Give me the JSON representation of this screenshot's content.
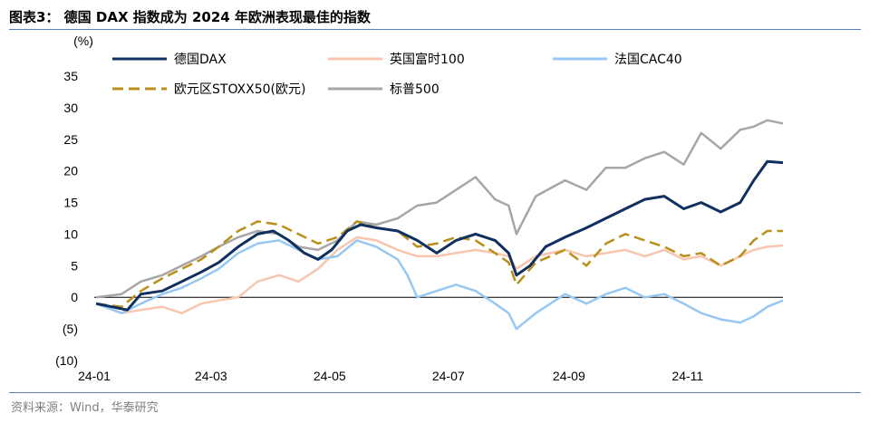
{
  "title": "图表3：  德国 DAX 指数成为 2024 年欧洲表现最佳的指数",
  "source": "资料来源：Wind，华泰研究",
  "chart_data": {
    "type": "line",
    "unit_label": "(%)",
    "y_ticks": [
      "35",
      "30",
      "25",
      "20",
      "15",
      "10",
      "5",
      "0",
      "(5)",
      "(10)"
    ],
    "y_tick_values": [
      35,
      30,
      25,
      20,
      15,
      10,
      5,
      0,
      -5,
      -10
    ],
    "ylim": [
      -10,
      35
    ],
    "x_ticks": [
      "24-01",
      "24-03",
      "24-05",
      "24-07",
      "24-09",
      "24-11"
    ],
    "x_tick_values": [
      "2024-01-01",
      "2024-03-01",
      "2024-05-01",
      "2024-07-01",
      "2024-09-01",
      "2024-11-01"
    ],
    "xlim": [
      "2024-01-01",
      "2024-12-20"
    ],
    "legend_position": "top",
    "series": [
      {
        "name": "德国DAX",
        "color": "#10305f",
        "dash": "solid",
        "points": [
          [
            "2024-01-02",
            -1.0
          ],
          [
            "2024-01-10",
            -1.5
          ],
          [
            "2024-01-18",
            -2.0
          ],
          [
            "2024-01-25",
            0.5
          ],
          [
            "2024-02-05",
            1.0
          ],
          [
            "2024-02-15",
            2.5
          ],
          [
            "2024-02-25",
            4.0
          ],
          [
            "2024-03-05",
            5.5
          ],
          [
            "2024-03-15",
            8.0
          ],
          [
            "2024-03-25",
            10.0
          ],
          [
            "2024-04-02",
            10.5
          ],
          [
            "2024-04-10",
            9.0
          ],
          [
            "2024-04-18",
            7.0
          ],
          [
            "2024-04-25",
            6.0
          ],
          [
            "2024-05-02",
            7.5
          ],
          [
            "2024-05-10",
            10.5
          ],
          [
            "2024-05-17",
            11.5
          ],
          [
            "2024-05-25",
            11.0
          ],
          [
            "2024-06-05",
            10.5
          ],
          [
            "2024-06-15",
            9.0
          ],
          [
            "2024-06-25",
            7.0
          ],
          [
            "2024-07-05",
            9.0
          ],
          [
            "2024-07-15",
            10.0
          ],
          [
            "2024-07-25",
            9.0
          ],
          [
            "2024-08-01",
            7.0
          ],
          [
            "2024-08-05",
            3.5
          ],
          [
            "2024-08-12",
            5.0
          ],
          [
            "2024-08-20",
            8.0
          ],
          [
            "2024-08-30",
            9.5
          ],
          [
            "2024-09-10",
            11.0
          ],
          [
            "2024-09-20",
            12.5
          ],
          [
            "2024-09-30",
            14.0
          ],
          [
            "2024-10-10",
            15.5
          ],
          [
            "2024-10-20",
            16.0
          ],
          [
            "2024-10-30",
            14.0
          ],
          [
            "2024-11-08",
            15.0
          ],
          [
            "2024-11-18",
            13.5
          ],
          [
            "2024-11-28",
            15.0
          ],
          [
            "2024-12-05",
            18.5
          ],
          [
            "2024-12-12",
            21.5
          ],
          [
            "2024-12-20",
            21.3
          ]
        ]
      },
      {
        "name": "英国富时100",
        "color": "#f8c6ae",
        "dash": "solid",
        "points": [
          [
            "2024-01-02",
            -1.0
          ],
          [
            "2024-01-15",
            -2.5
          ],
          [
            "2024-01-25",
            -2.0
          ],
          [
            "2024-02-05",
            -1.5
          ],
          [
            "2024-02-15",
            -2.5
          ],
          [
            "2024-02-25",
            -1.0
          ],
          [
            "2024-03-05",
            -0.5
          ],
          [
            "2024-03-15",
            0.0
          ],
          [
            "2024-03-25",
            2.5
          ],
          [
            "2024-04-05",
            3.5
          ],
          [
            "2024-04-15",
            2.5
          ],
          [
            "2024-04-25",
            4.5
          ],
          [
            "2024-05-05",
            7.5
          ],
          [
            "2024-05-15",
            9.5
          ],
          [
            "2024-05-25",
            9.0
          ],
          [
            "2024-06-05",
            7.5
          ],
          [
            "2024-06-15",
            6.5
          ],
          [
            "2024-06-25",
            6.5
          ],
          [
            "2024-07-05",
            7.0
          ],
          [
            "2024-07-15",
            7.5
          ],
          [
            "2024-07-25",
            7.0
          ],
          [
            "2024-08-01",
            6.5
          ],
          [
            "2024-08-05",
            4.5
          ],
          [
            "2024-08-15",
            6.5
          ],
          [
            "2024-08-30",
            7.5
          ],
          [
            "2024-09-10",
            6.5
          ],
          [
            "2024-09-20",
            7.0
          ],
          [
            "2024-09-30",
            7.5
          ],
          [
            "2024-10-10",
            6.5
          ],
          [
            "2024-10-20",
            7.5
          ],
          [
            "2024-10-30",
            6.0
          ],
          [
            "2024-11-08",
            6.5
          ],
          [
            "2024-11-18",
            5.0
          ],
          [
            "2024-11-28",
            6.5
          ],
          [
            "2024-12-05",
            7.5
          ],
          [
            "2024-12-12",
            8.0
          ],
          [
            "2024-12-20",
            8.2
          ]
        ]
      },
      {
        "name": "法国CAC40",
        "color": "#96c8f2",
        "dash": "solid",
        "points": [
          [
            "2024-01-02",
            -1.0
          ],
          [
            "2024-01-15",
            -2.5
          ],
          [
            "2024-01-25",
            -1.0
          ],
          [
            "2024-02-05",
            0.5
          ],
          [
            "2024-02-15",
            1.5
          ],
          [
            "2024-02-25",
            3.0
          ],
          [
            "2024-03-05",
            4.5
          ],
          [
            "2024-03-15",
            7.0
          ],
          [
            "2024-03-25",
            8.5
          ],
          [
            "2024-04-05",
            9.0
          ],
          [
            "2024-04-15",
            7.5
          ],
          [
            "2024-04-25",
            6.0
          ],
          [
            "2024-05-05",
            6.5
          ],
          [
            "2024-05-15",
            9.0
          ],
          [
            "2024-05-25",
            8.0
          ],
          [
            "2024-06-05",
            6.0
          ],
          [
            "2024-06-10",
            3.5
          ],
          [
            "2024-06-15",
            0.0
          ],
          [
            "2024-06-25",
            1.0
          ],
          [
            "2024-07-05",
            2.0
          ],
          [
            "2024-07-15",
            1.0
          ],
          [
            "2024-07-25",
            -1.0
          ],
          [
            "2024-08-01",
            -2.5
          ],
          [
            "2024-08-05",
            -5.0
          ],
          [
            "2024-08-15",
            -2.5
          ],
          [
            "2024-08-30",
            0.5
          ],
          [
            "2024-09-10",
            -1.0
          ],
          [
            "2024-09-20",
            0.5
          ],
          [
            "2024-09-30",
            1.5
          ],
          [
            "2024-10-10",
            0.0
          ],
          [
            "2024-10-20",
            0.5
          ],
          [
            "2024-10-30",
            -1.0
          ],
          [
            "2024-11-08",
            -2.5
          ],
          [
            "2024-11-18",
            -3.5
          ],
          [
            "2024-11-28",
            -4.0
          ],
          [
            "2024-12-05",
            -3.0
          ],
          [
            "2024-12-12",
            -1.5
          ],
          [
            "2024-12-20",
            -0.5
          ]
        ]
      },
      {
        "name": "欧元区STOXX50(欧元)",
        "color": "#b8901a",
        "dash": "dashed",
        "points": [
          [
            "2024-01-02",
            -1.0
          ],
          [
            "2024-01-15",
            -1.5
          ],
          [
            "2024-01-25",
            1.0
          ],
          [
            "2024-02-05",
            3.0
          ],
          [
            "2024-02-15",
            4.5
          ],
          [
            "2024-02-25",
            6.0
          ],
          [
            "2024-03-05",
            8.0
          ],
          [
            "2024-03-15",
            10.5
          ],
          [
            "2024-03-25",
            12.0
          ],
          [
            "2024-04-05",
            11.5
          ],
          [
            "2024-04-15",
            10.0
          ],
          [
            "2024-04-25",
            8.5
          ],
          [
            "2024-05-05",
            9.5
          ],
          [
            "2024-05-15",
            12.0
          ],
          [
            "2024-05-25",
            11.0
          ],
          [
            "2024-06-05",
            10.5
          ],
          [
            "2024-06-15",
            8.0
          ],
          [
            "2024-06-25",
            8.5
          ],
          [
            "2024-07-05",
            9.5
          ],
          [
            "2024-07-15",
            9.0
          ],
          [
            "2024-07-25",
            7.0
          ],
          [
            "2024-08-01",
            5.5
          ],
          [
            "2024-08-05",
            2.0
          ],
          [
            "2024-08-15",
            5.5
          ],
          [
            "2024-08-30",
            7.5
          ],
          [
            "2024-09-10",
            5.0
          ],
          [
            "2024-09-20",
            8.5
          ],
          [
            "2024-09-30",
            10.0
          ],
          [
            "2024-10-10",
            9.0
          ],
          [
            "2024-10-20",
            8.0
          ],
          [
            "2024-10-30",
            6.5
          ],
          [
            "2024-11-08",
            7.0
          ],
          [
            "2024-11-18",
            5.0
          ],
          [
            "2024-11-28",
            6.5
          ],
          [
            "2024-12-05",
            9.0
          ],
          [
            "2024-12-12",
            10.5
          ],
          [
            "2024-12-20",
            10.5
          ]
        ]
      },
      {
        "name": "标普500",
        "color": "#a6a6a6",
        "dash": "solid",
        "points": [
          [
            "2024-01-02",
            0.0
          ],
          [
            "2024-01-15",
            0.5
          ],
          [
            "2024-01-25",
            2.5
          ],
          [
            "2024-02-05",
            3.5
          ],
          [
            "2024-02-15",
            5.0
          ],
          [
            "2024-02-25",
            6.5
          ],
          [
            "2024-03-05",
            8.0
          ],
          [
            "2024-03-15",
            9.5
          ],
          [
            "2024-03-25",
            10.5
          ],
          [
            "2024-04-05",
            10.0
          ],
          [
            "2024-04-15",
            8.0
          ],
          [
            "2024-04-25",
            7.5
          ],
          [
            "2024-05-05",
            9.0
          ],
          [
            "2024-05-15",
            12.0
          ],
          [
            "2024-05-25",
            11.5
          ],
          [
            "2024-06-05",
            12.5
          ],
          [
            "2024-06-15",
            14.5
          ],
          [
            "2024-06-25",
            15.0
          ],
          [
            "2024-07-05",
            17.0
          ],
          [
            "2024-07-15",
            19.0
          ],
          [
            "2024-07-25",
            15.5
          ],
          [
            "2024-08-01",
            14.5
          ],
          [
            "2024-08-05",
            10.0
          ],
          [
            "2024-08-15",
            16.0
          ],
          [
            "2024-08-30",
            18.5
          ],
          [
            "2024-09-10",
            17.0
          ],
          [
            "2024-09-20",
            20.5
          ],
          [
            "2024-09-30",
            20.5
          ],
          [
            "2024-10-10",
            22.0
          ],
          [
            "2024-10-20",
            23.0
          ],
          [
            "2024-10-30",
            21.0
          ],
          [
            "2024-11-08",
            26.0
          ],
          [
            "2024-11-18",
            23.5
          ],
          [
            "2024-11-28",
            26.5
          ],
          [
            "2024-12-05",
            27.0
          ],
          [
            "2024-12-12",
            28.0
          ],
          [
            "2024-12-20",
            27.5
          ]
        ]
      }
    ]
  }
}
